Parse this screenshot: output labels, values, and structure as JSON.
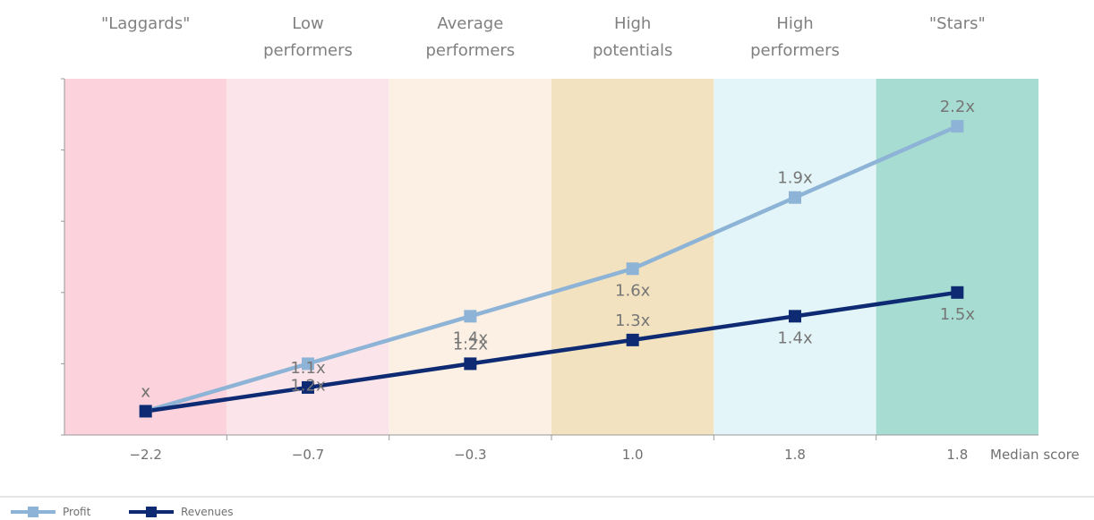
{
  "colors": {
    "profit": "#8db3d6",
    "revenues": "#0d2a72",
    "bands": [
      "#fcd3dc",
      "#fbe5ea",
      "#fbf0e3",
      "#f2e2bf",
      "#e3f5f8",
      "#a6dcd1"
    ],
    "axis": "#999999"
  },
  "chart_data": {
    "type": "line",
    "categories": [
      "\"Laggards\"",
      "Low performers",
      "Average performers",
      "High potentials",
      "High performers",
      "\"Stars\""
    ],
    "category_label_lines": [
      [
        "\"Laggards\""
      ],
      [
        "Low",
        "performers"
      ],
      [
        "Average",
        "performers"
      ],
      [
        "High",
        "potentials"
      ],
      [
        "High",
        "performers"
      ],
      [
        "\"Stars\""
      ]
    ],
    "x_tick_labels": [
      "−2.2",
      "−0.7",
      "−0.3",
      "1.0",
      "1.8",
      "1.8"
    ],
    "xlabel": "Median score",
    "ylabel": "",
    "ylim": [
      0.9,
      2.4
    ],
    "grid": false,
    "legend_position": "bottom-left",
    "series": [
      {
        "name": "Profit",
        "values": [
          1.0,
          1.2,
          1.4,
          1.6,
          1.9,
          2.2
        ],
        "data_labels": [
          "x",
          "1.2x",
          "1.4x",
          "1.6x",
          "1.9x",
          "2.2x"
        ],
        "label_positions": [
          "above",
          "below",
          "below",
          "below",
          "above",
          "above"
        ]
      },
      {
        "name": "Revenues",
        "values": [
          1.0,
          1.1,
          1.2,
          1.3,
          1.4,
          1.5
        ],
        "data_labels": [
          "x",
          "1.1x",
          "1.2x",
          "1.3x",
          "1.4x",
          "1.5x"
        ],
        "label_positions": [
          "above",
          "above",
          "above",
          "above",
          "below",
          "below"
        ]
      }
    ]
  }
}
